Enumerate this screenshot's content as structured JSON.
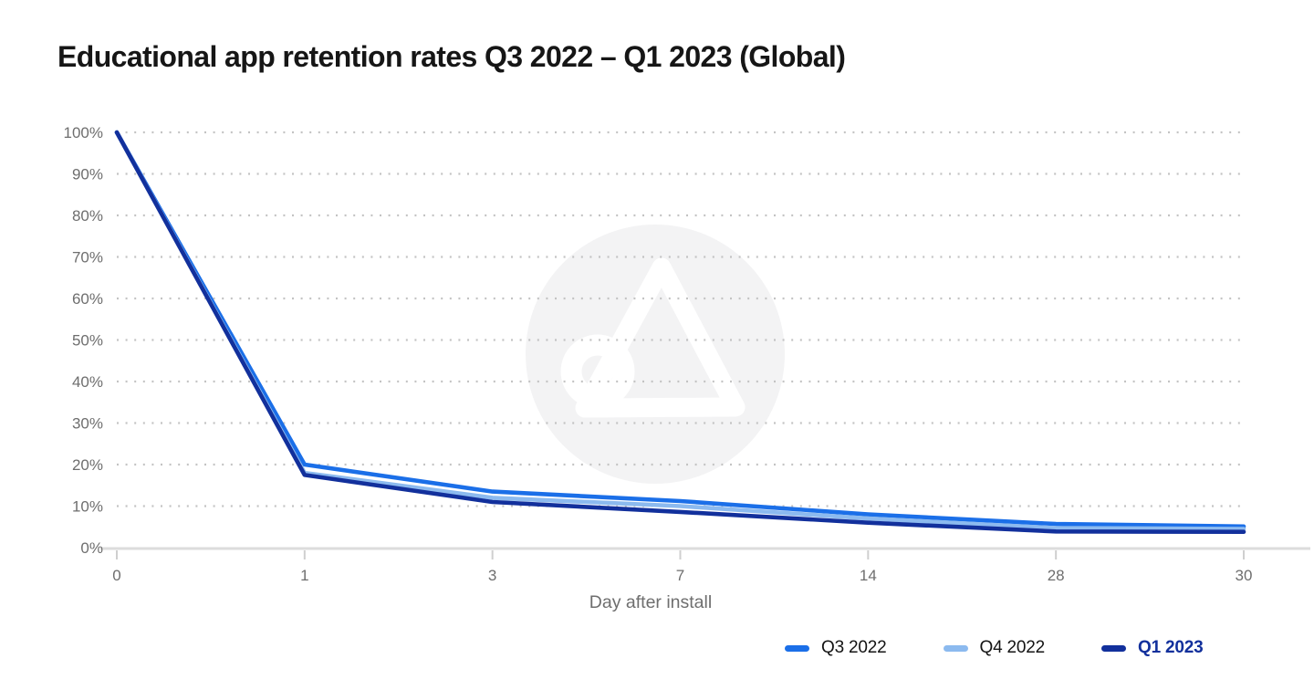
{
  "title": "Educational app retention rates Q3 2022 – Q1 2023 (Global)",
  "watermark": {
    "icon": "a-logo-watermark-icon",
    "circle_color": "#f3f3f4",
    "glyph_color": "#ffffff"
  },
  "axis": {
    "x_title": "Day after install",
    "text_color": "#6e6e6e",
    "grid_dot_color": "#c3c3c3",
    "baseline_color": "#dcdcdc",
    "tick_color": "#cfcfcf"
  },
  "chart_data": {
    "type": "line",
    "title": "Educational app retention rates Q3 2022 – Q1 2023 (Global)",
    "xlabel": "Day after install",
    "ylabel": "",
    "x_scale": "categorical-evenly-spaced",
    "x_tick_labels": [
      "0",
      "1",
      "3",
      "7",
      "14",
      "28",
      "30"
    ],
    "x_values_days": [
      0,
      1,
      3,
      7,
      14,
      28,
      30
    ],
    "y_tick_labels": [
      "0%",
      "10%",
      "20%",
      "30%",
      "40%",
      "50%",
      "60%",
      "70%",
      "80%",
      "90%",
      "100%"
    ],
    "ylim": [
      0,
      100
    ],
    "y_unit": "%",
    "grid": "horizontal-dotted",
    "legend_position": "bottom-right",
    "series": [
      {
        "name": "Q3 2022",
        "color": "#1b6fe8",
        "label_color": "#141414",
        "emphasis": false,
        "values": [
          100,
          20,
          13.5,
          11.2,
          8,
          5.7,
          5.1
        ]
      },
      {
        "name": "Q4 2022",
        "color": "#8cbaef",
        "label_color": "#141414",
        "emphasis": false,
        "values": [
          100,
          18,
          12,
          10,
          7,
          4.7,
          4.5
        ]
      },
      {
        "name": "Q1 2023",
        "color": "#12309c",
        "label_color": "#12309c",
        "emphasis": true,
        "values": [
          100,
          17.5,
          11,
          8.6,
          6,
          3.9,
          3.8
        ]
      }
    ]
  }
}
